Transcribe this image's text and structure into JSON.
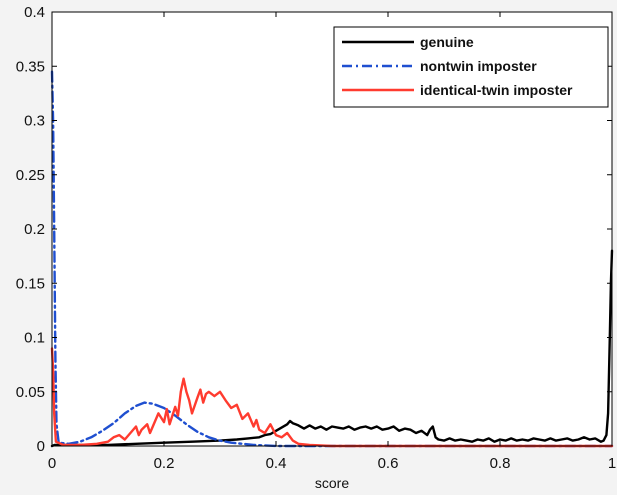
{
  "chart_data": {
    "type": "line",
    "xlabel": "score",
    "ylabel": "",
    "title": "",
    "xlim": [
      0,
      1
    ],
    "ylim": [
      0,
      0.4
    ],
    "x_ticks": [
      0,
      0.2,
      0.4,
      0.6,
      0.8,
      1
    ],
    "x_tick_labels": [
      "0",
      "0.2",
      "0.4",
      "0.6",
      "0.8",
      "1"
    ],
    "y_ticks": [
      0,
      0.05,
      0.1,
      0.15,
      0.2,
      0.25,
      0.3,
      0.35,
      0.4
    ],
    "y_tick_labels": [
      "0",
      "0.05",
      "0.1",
      "0.15",
      "0.2",
      "0.25",
      "0.3",
      "0.35",
      "0.4"
    ],
    "legend_position": "top-right",
    "grid": false,
    "series": [
      {
        "name": "genuine",
        "color": "#000000",
        "style": "solid",
        "points": [
          [
            0.0,
            0.0
          ],
          [
            0.005,
            0.001
          ],
          [
            0.02,
            0.001
          ],
          [
            0.05,
            0.001
          ],
          [
            0.1,
            0.001
          ],
          [
            0.15,
            0.002
          ],
          [
            0.2,
            0.003
          ],
          [
            0.25,
            0.004
          ],
          [
            0.3,
            0.005
          ],
          [
            0.33,
            0.006
          ],
          [
            0.35,
            0.007
          ],
          [
            0.37,
            0.008
          ],
          [
            0.38,
            0.01
          ],
          [
            0.39,
            0.011
          ],
          [
            0.4,
            0.014
          ],
          [
            0.41,
            0.017
          ],
          [
            0.42,
            0.02
          ],
          [
            0.425,
            0.023
          ],
          [
            0.43,
            0.021
          ],
          [
            0.435,
            0.02
          ],
          [
            0.44,
            0.019
          ],
          [
            0.45,
            0.016
          ],
          [
            0.46,
            0.019
          ],
          [
            0.47,
            0.016
          ],
          [
            0.48,
            0.018
          ],
          [
            0.49,
            0.015
          ],
          [
            0.5,
            0.018
          ],
          [
            0.51,
            0.017
          ],
          [
            0.52,
            0.016
          ],
          [
            0.53,
            0.018
          ],
          [
            0.54,
            0.015
          ],
          [
            0.55,
            0.017
          ],
          [
            0.56,
            0.018
          ],
          [
            0.57,
            0.016
          ],
          [
            0.58,
            0.018
          ],
          [
            0.59,
            0.015
          ],
          [
            0.6,
            0.016
          ],
          [
            0.61,
            0.018
          ],
          [
            0.62,
            0.014
          ],
          [
            0.63,
            0.016
          ],
          [
            0.64,
            0.015
          ],
          [
            0.65,
            0.012
          ],
          [
            0.66,
            0.014
          ],
          [
            0.67,
            0.01
          ],
          [
            0.675,
            0.015
          ],
          [
            0.68,
            0.018
          ],
          [
            0.685,
            0.008
          ],
          [
            0.69,
            0.006
          ],
          [
            0.7,
            0.005
          ],
          [
            0.71,
            0.007
          ],
          [
            0.72,
            0.005
          ],
          [
            0.73,
            0.006
          ],
          [
            0.74,
            0.005
          ],
          [
            0.75,
            0.004
          ],
          [
            0.76,
            0.006
          ],
          [
            0.77,
            0.005
          ],
          [
            0.78,
            0.007
          ],
          [
            0.79,
            0.004
          ],
          [
            0.8,
            0.006
          ],
          [
            0.81,
            0.005
          ],
          [
            0.82,
            0.007
          ],
          [
            0.83,
            0.005
          ],
          [
            0.84,
            0.006
          ],
          [
            0.85,
            0.005
          ],
          [
            0.86,
            0.007
          ],
          [
            0.87,
            0.006
          ],
          [
            0.88,
            0.005
          ],
          [
            0.89,
            0.007
          ],
          [
            0.9,
            0.005
          ],
          [
            0.91,
            0.006
          ],
          [
            0.92,
            0.007
          ],
          [
            0.93,
            0.005
          ],
          [
            0.94,
            0.006
          ],
          [
            0.95,
            0.008
          ],
          [
            0.96,
            0.006
          ],
          [
            0.97,
            0.007
          ],
          [
            0.98,
            0.004
          ],
          [
            0.985,
            0.005
          ],
          [
            0.99,
            0.01
          ],
          [
            0.993,
            0.03
          ],
          [
            0.996,
            0.1
          ],
          [
            0.998,
            0.15
          ],
          [
            1.0,
            0.18
          ]
        ]
      },
      {
        "name": "nontwin imposter",
        "color": "#1f4fd0",
        "style": "dashdot",
        "points": [
          [
            0.0,
            0.345
          ],
          [
            0.002,
            0.3
          ],
          [
            0.004,
            0.2
          ],
          [
            0.006,
            0.08
          ],
          [
            0.008,
            0.02
          ],
          [
            0.012,
            0.003
          ],
          [
            0.03,
            0.002
          ],
          [
            0.05,
            0.004
          ],
          [
            0.07,
            0.008
          ],
          [
            0.09,
            0.014
          ],
          [
            0.11,
            0.021
          ],
          [
            0.13,
            0.03
          ],
          [
            0.15,
            0.037
          ],
          [
            0.165,
            0.04
          ],
          [
            0.18,
            0.039
          ],
          [
            0.2,
            0.035
          ],
          [
            0.22,
            0.028
          ],
          [
            0.24,
            0.02
          ],
          [
            0.26,
            0.013
          ],
          [
            0.28,
            0.008
          ],
          [
            0.3,
            0.005
          ],
          [
            0.32,
            0.003
          ],
          [
            0.34,
            0.002
          ],
          [
            0.36,
            0.001
          ],
          [
            0.4,
            0.0
          ],
          [
            0.5,
            0.0
          ],
          [
            0.7,
            0.0
          ],
          [
            1.0,
            0.0
          ]
        ]
      },
      {
        "name": "identical-twin imposter",
        "color": "#ff3b2f",
        "style": "solid",
        "points": [
          [
            0.0,
            0.09
          ],
          [
            0.002,
            0.07
          ],
          [
            0.004,
            0.03
          ],
          [
            0.007,
            0.004
          ],
          [
            0.02,
            0.001
          ],
          [
            0.05,
            0.001
          ],
          [
            0.08,
            0.002
          ],
          [
            0.1,
            0.004
          ],
          [
            0.11,
            0.008
          ],
          [
            0.12,
            0.01
          ],
          [
            0.13,
            0.006
          ],
          [
            0.14,
            0.012
          ],
          [
            0.15,
            0.018
          ],
          [
            0.155,
            0.01
          ],
          [
            0.16,
            0.015
          ],
          [
            0.17,
            0.02
          ],
          [
            0.175,
            0.012
          ],
          [
            0.18,
            0.018
          ],
          [
            0.19,
            0.03
          ],
          [
            0.2,
            0.022
          ],
          [
            0.205,
            0.034
          ],
          [
            0.21,
            0.02
          ],
          [
            0.22,
            0.036
          ],
          [
            0.225,
            0.028
          ],
          [
            0.23,
            0.05
          ],
          [
            0.235,
            0.062
          ],
          [
            0.24,
            0.05
          ],
          [
            0.245,
            0.042
          ],
          [
            0.25,
            0.03
          ],
          [
            0.26,
            0.045
          ],
          [
            0.265,
            0.052
          ],
          [
            0.27,
            0.04
          ],
          [
            0.275,
            0.048
          ],
          [
            0.28,
            0.05
          ],
          [
            0.29,
            0.046
          ],
          [
            0.3,
            0.05
          ],
          [
            0.31,
            0.042
          ],
          [
            0.32,
            0.035
          ],
          [
            0.33,
            0.038
          ],
          [
            0.34,
            0.025
          ],
          [
            0.35,
            0.03
          ],
          [
            0.36,
            0.018
          ],
          [
            0.365,
            0.024
          ],
          [
            0.37,
            0.015
          ],
          [
            0.38,
            0.012
          ],
          [
            0.39,
            0.02
          ],
          [
            0.4,
            0.01
          ],
          [
            0.41,
            0.008
          ],
          [
            0.42,
            0.012
          ],
          [
            0.43,
            0.005
          ],
          [
            0.44,
            0.002
          ],
          [
            0.46,
            0.001
          ],
          [
            0.5,
            0.0
          ],
          [
            0.7,
            0.0
          ],
          [
            1.0,
            0.0
          ]
        ]
      }
    ]
  }
}
